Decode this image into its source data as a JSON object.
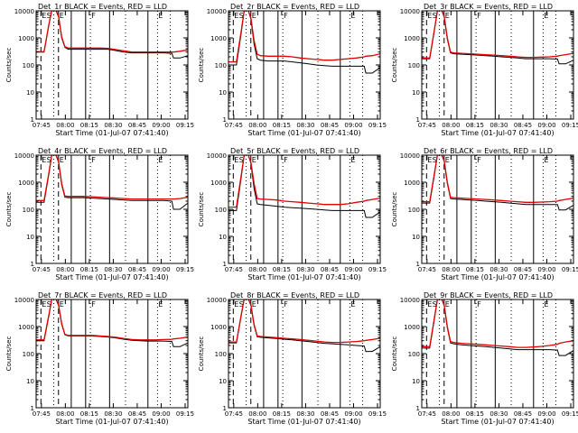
{
  "colors": {
    "events": "#000000",
    "lld": "#e00000",
    "background": "#ffffff",
    "axis": "#000000"
  },
  "xlabel": "Start Time (01-Jul-07 07:41:40)",
  "ylabel": "Counts/sec",
  "xticks": [
    "07:45",
    "08:00",
    "08:15",
    "08:30",
    "08:45",
    "09:00",
    "09:15"
  ],
  "yticks": [
    "1",
    "10",
    "100",
    "1000",
    "10000"
  ],
  "chart_data": [
    {
      "type": "line",
      "title": "Det_1r BLACK = Events, RED = LLD",
      "xlabel": "Start Time (01-Jul-07 07:41:40)",
      "ylabel": "Counts/sec",
      "yscale": "log",
      "ylim": [
        1,
        10000
      ],
      "xlim_min": [
        0,
        95
      ],
      "markers": [
        "E",
        "S",
        "E",
        "F",
        "E"
      ],
      "x": [
        0,
        3,
        5,
        8,
        10,
        12,
        14,
        16,
        18,
        20,
        25,
        30,
        35,
        40,
        45,
        50,
        55,
        60,
        65,
        70,
        75,
        80,
        85,
        86,
        90,
        95
      ],
      "series": [
        {
          "name": "BLACK",
          "values": [
            300,
            300,
            300,
            3000,
            12000,
            12000,
            6000,
            1000,
            450,
            380,
            380,
            380,
            380,
            380,
            380,
            340,
            300,
            280,
            280,
            280,
            280,
            280,
            270,
            180,
            180,
            220
          ]
        },
        {
          "name": "RED",
          "values": [
            310,
            310,
            310,
            3100,
            12000,
            12000,
            6500,
            1100,
            480,
            420,
            420,
            420,
            420,
            420,
            410,
            370,
            330,
            300,
            300,
            300,
            300,
            300,
            300,
            300,
            320,
            360
          ]
        }
      ],
      "vlines_dashed": [
        3,
        14
      ],
      "vlines_dotted": [
        11,
        34,
        56,
        76,
        84
      ],
      "vlines_solid": [
        22,
        31,
        46,
        70
      ]
    },
    {
      "type": "line",
      "title": "Det_2r BLACK = Events, RED = LLD",
      "xlabel": "Start Time (01-Jul-07 07:41:40)",
      "ylabel": "Counts/sec",
      "yscale": "log",
      "ylim": [
        1,
        10000
      ],
      "xlim_min": [
        0,
        95
      ],
      "markers": [
        "E",
        "S",
        "E",
        "F",
        "E"
      ],
      "x": [
        0,
        3,
        5,
        8,
        10,
        12,
        14,
        16,
        18,
        20,
        25,
        30,
        35,
        40,
        45,
        50,
        55,
        60,
        65,
        70,
        75,
        80,
        85,
        86,
        90,
        95
      ],
      "series": [
        {
          "name": "BLACK",
          "values": [
            100,
            100,
            100,
            1500,
            12000,
            12000,
            5000,
            600,
            170,
            150,
            140,
            140,
            140,
            130,
            120,
            110,
            100,
            95,
            90,
            90,
            90,
            90,
            90,
            50,
            50,
            80
          ]
        },
        {
          "name": "RED",
          "values": [
            130,
            130,
            130,
            1800,
            12000,
            12000,
            5500,
            800,
            250,
            220,
            210,
            210,
            210,
            200,
            180,
            170,
            160,
            150,
            150,
            160,
            170,
            180,
            200,
            210,
            220,
            260
          ]
        }
      ],
      "vlines_dashed": [
        3,
        14
      ],
      "vlines_dotted": [
        11,
        34,
        56,
        76,
        84
      ],
      "vlines_solid": [
        22,
        31,
        46,
        70
      ]
    },
    {
      "type": "line",
      "title": "Det_3r BLACK = Events, RED = LLD",
      "xlabel": "Start Time (01-Jul-07 07:41:40)",
      "ylabel": "Counts/sec",
      "yscale": "log",
      "ylim": [
        1,
        10000
      ],
      "xlim_min": [
        0,
        95
      ],
      "markers": [
        "E",
        "S",
        "E",
        "F",
        "E"
      ],
      "x": [
        0,
        3,
        5,
        8,
        10,
        12,
        14,
        16,
        18,
        20,
        25,
        30,
        35,
        40,
        45,
        50,
        55,
        60,
        65,
        70,
        75,
        80,
        85,
        86,
        90,
        95
      ],
      "series": [
        {
          "name": "BLACK",
          "values": [
            170,
            170,
            170,
            2000,
            12000,
            12000,
            6000,
            900,
            280,
            260,
            250,
            240,
            230,
            220,
            210,
            200,
            190,
            180,
            170,
            170,
            170,
            170,
            165,
            110,
            110,
            150
          ]
        },
        {
          "name": "RED",
          "values": [
            180,
            180,
            180,
            2100,
            12000,
            12000,
            6500,
            1000,
            300,
            280,
            270,
            260,
            250,
            240,
            230,
            220,
            210,
            200,
            190,
            190,
            195,
            200,
            210,
            220,
            240,
            270
          ]
        }
      ],
      "vlines_dashed": [
        3,
        14
      ],
      "vlines_dotted": [
        11,
        34,
        56,
        76,
        84
      ],
      "vlines_solid": [
        22,
        31,
        46,
        70
      ]
    },
    {
      "type": "line",
      "title": "Det_4r BLACK = Events, RED = LLD",
      "xlabel": "Start Time (01-Jul-07 07:41:40)",
      "ylabel": "Counts/sec",
      "yscale": "log",
      "ylim": [
        1,
        10000
      ],
      "xlim_min": [
        0,
        95
      ],
      "markers": [
        "E",
        "S",
        "E",
        "F",
        "E"
      ],
      "x": [
        0,
        3,
        5,
        8,
        10,
        12,
        14,
        16,
        18,
        20,
        25,
        30,
        35,
        40,
        45,
        50,
        55,
        60,
        65,
        70,
        75,
        80,
        85,
        86,
        90,
        95
      ],
      "series": [
        {
          "name": "BLACK",
          "values": [
            180,
            180,
            180,
            2000,
            12000,
            12000,
            5500,
            800,
            280,
            270,
            270,
            270,
            260,
            250,
            240,
            230,
            220,
            210,
            210,
            210,
            210,
            210,
            200,
            100,
            100,
            170
          ]
        },
        {
          "name": "RED",
          "values": [
            210,
            210,
            210,
            2200,
            12000,
            12000,
            6000,
            900,
            310,
            300,
            300,
            300,
            290,
            280,
            270,
            260,
            250,
            240,
            240,
            240,
            240,
            240,
            240,
            240,
            250,
            280
          ]
        }
      ],
      "vlines_dashed": [
        3,
        14
      ],
      "vlines_dotted": [
        11,
        34,
        56,
        76,
        84
      ],
      "vlines_solid": [
        22,
        31,
        46,
        70
      ]
    },
    {
      "type": "line",
      "title": "Det_5r BLACK = Events, RED = LLD",
      "xlabel": "Start Time (01-Jul-07 07:41:40)",
      "ylabel": "Counts/sec",
      "yscale": "log",
      "ylim": [
        1,
        10000
      ],
      "xlim_min": [
        0,
        95
      ],
      "markers": [
        "E",
        "S",
        "E",
        "F",
        "E"
      ],
      "x": [
        0,
        3,
        5,
        8,
        10,
        12,
        14,
        16,
        18,
        20,
        25,
        30,
        35,
        40,
        45,
        50,
        55,
        60,
        65,
        70,
        75,
        80,
        85,
        86,
        90,
        95
      ],
      "series": [
        {
          "name": "BLACK",
          "values": [
            90,
            90,
            90,
            1500,
            12000,
            12000,
            5000,
            600,
            160,
            150,
            140,
            130,
            120,
            115,
            110,
            105,
            100,
            95,
            90,
            90,
            90,
            90,
            90,
            50,
            50,
            80
          ]
        },
        {
          "name": "RED",
          "values": [
            120,
            120,
            120,
            1800,
            12000,
            12000,
            5500,
            900,
            250,
            240,
            230,
            220,
            200,
            190,
            180,
            170,
            160,
            150,
            150,
            150,
            160,
            180,
            200,
            210,
            230,
            260
          ]
        }
      ],
      "vlines_dashed": [
        3,
        14
      ],
      "vlines_dotted": [
        11,
        34,
        56,
        76,
        84
      ],
      "vlines_solid": [
        22,
        31,
        46,
        70
      ]
    },
    {
      "type": "line",
      "title": "Det_6r BLACK = Events, RED = LLD",
      "xlabel": "Start Time (01-Jul-07 07:41:40)",
      "ylabel": "Counts/sec",
      "yscale": "log",
      "ylim": [
        1,
        10000
      ],
      "xlim_min": [
        0,
        95
      ],
      "markers": [
        "E",
        "S",
        "E",
        "F",
        "E"
      ],
      "x": [
        0,
        3,
        5,
        8,
        10,
        12,
        14,
        16,
        18,
        20,
        25,
        30,
        35,
        40,
        45,
        50,
        55,
        60,
        65,
        70,
        75,
        80,
        85,
        86,
        90,
        95
      ],
      "series": [
        {
          "name": "BLACK",
          "values": [
            170,
            170,
            170,
            2000,
            12000,
            12000,
            6000,
            900,
            250,
            240,
            230,
            220,
            210,
            200,
            190,
            180,
            170,
            160,
            150,
            150,
            150,
            150,
            150,
            95,
            95,
            140
          ]
        },
        {
          "name": "RED",
          "values": [
            190,
            190,
            190,
            2200,
            12000,
            12000,
            6500,
            1000,
            280,
            270,
            260,
            250,
            240,
            230,
            220,
            210,
            200,
            190,
            180,
            180,
            185,
            190,
            200,
            210,
            230,
            260
          ]
        }
      ],
      "vlines_dashed": [
        3,
        14
      ],
      "vlines_dotted": [
        11,
        34,
        56,
        76,
        84
      ],
      "vlines_solid": [
        22,
        31,
        46,
        70
      ]
    },
    {
      "type": "line",
      "title": "Det_7r BLACK = Events, RED = LLD",
      "xlabel": "Start Time (01-Jul-07 07:41:40)",
      "ylabel": "Counts/sec",
      "yscale": "log",
      "ylim": [
        1,
        10000
      ],
      "xlim_min": [
        0,
        95
      ],
      "markers": [
        "E",
        "S",
        "E",
        "F",
        "E"
      ],
      "x": [
        0,
        3,
        5,
        8,
        10,
        12,
        14,
        16,
        18,
        20,
        25,
        30,
        35,
        40,
        45,
        50,
        55,
        60,
        65,
        70,
        75,
        80,
        85,
        86,
        90,
        95
      ],
      "series": [
        {
          "name": "BLACK",
          "values": [
            300,
            300,
            300,
            2500,
            12000,
            12000,
            6000,
            1200,
            500,
            450,
            450,
            450,
            450,
            430,
            410,
            380,
            340,
            310,
            300,
            290,
            290,
            290,
            280,
            180,
            180,
            250
          ]
        },
        {
          "name": "RED",
          "values": [
            320,
            320,
            320,
            2700,
            12000,
            12000,
            6500,
            1300,
            520,
            470,
            470,
            470,
            470,
            450,
            430,
            400,
            360,
            330,
            320,
            320,
            320,
            330,
            340,
            350,
            370,
            410
          ]
        }
      ],
      "vlines_dashed": [
        3,
        14
      ],
      "vlines_dotted": [
        11,
        34,
        56,
        76,
        84
      ],
      "vlines_solid": [
        22,
        31,
        46,
        70
      ]
    },
    {
      "type": "line",
      "title": "Det_8r BLACK = Events, RED = LLD",
      "xlabel": "Start Time (01-Jul-07 07:41:40)",
      "ylabel": "Counts/sec",
      "yscale": "log",
      "ylim": [
        1,
        10000
      ],
      "xlim_min": [
        0,
        95
      ],
      "markers": [
        "E",
        "S",
        "E",
        "F",
        "E"
      ],
      "x": [
        0,
        3,
        5,
        8,
        10,
        12,
        14,
        16,
        18,
        20,
        25,
        30,
        35,
        40,
        45,
        50,
        55,
        60,
        65,
        70,
        75,
        80,
        85,
        86,
        90,
        95
      ],
      "series": [
        {
          "name": "BLACK",
          "values": [
            250,
            250,
            250,
            2500,
            12000,
            12000,
            6000,
            1100,
            420,
            400,
            380,
            360,
            340,
            320,
            300,
            280,
            260,
            240,
            230,
            220,
            210,
            200,
            190,
            120,
            120,
            180
          ]
        },
        {
          "name": "RED",
          "values": [
            270,
            270,
            270,
            2700,
            12000,
            12000,
            6500,
            1200,
            450,
            430,
            410,
            390,
            370,
            350,
            330,
            310,
            290,
            270,
            260,
            260,
            270,
            280,
            300,
            310,
            330,
            370
          ]
        }
      ],
      "vlines_dashed": [
        3,
        14
      ],
      "vlines_dotted": [
        11,
        34,
        56,
        76,
        84
      ],
      "vlines_solid": [
        22,
        31,
        46,
        70
      ]
    },
    {
      "type": "line",
      "title": "Det_9r BLACK = Events, RED = LLD",
      "xlabel": "Start Time (01-Jul-07 07:41:40)",
      "ylabel": "Counts/sec",
      "yscale": "log",
      "ylim": [
        1,
        10000
      ],
      "xlim_min": [
        0,
        95
      ],
      "markers": [
        "E",
        "S",
        "E",
        "F",
        "E"
      ],
      "x": [
        0,
        3,
        5,
        8,
        10,
        12,
        14,
        16,
        18,
        20,
        25,
        30,
        35,
        40,
        45,
        50,
        55,
        60,
        65,
        70,
        75,
        80,
        85,
        86,
        90,
        95
      ],
      "series": [
        {
          "name": "BLACK",
          "values": [
            160,
            160,
            160,
            2000,
            12000,
            12000,
            6000,
            900,
            250,
            230,
            210,
            200,
            190,
            180,
            170,
            160,
            150,
            140,
            140,
            140,
            140,
            140,
            135,
            85,
            85,
            130
          ]
        },
        {
          "name": "RED",
          "values": [
            180,
            180,
            180,
            2200,
            12000,
            12000,
            6500,
            1000,
            280,
            260,
            240,
            230,
            220,
            210,
            200,
            190,
            180,
            170,
            170,
            175,
            185,
            200,
            220,
            240,
            270,
            300
          ]
        }
      ],
      "vlines_dashed": [
        3,
        14
      ],
      "vlines_dotted": [
        11,
        34,
        56,
        76,
        84
      ],
      "vlines_solid": [
        22,
        31,
        46,
        70
      ]
    }
  ]
}
